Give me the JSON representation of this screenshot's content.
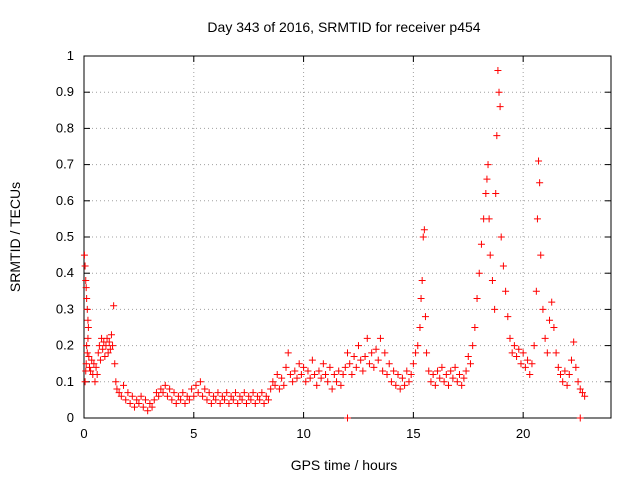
{
  "chart_data": {
    "type": "scatter",
    "title": "Day 343 of 2016, SRMTID for receiver p454",
    "xlabel": "GPS time / hours",
    "ylabel": "SRMTID / TECUs",
    "xlim": [
      0,
      24
    ],
    "ylim": [
      0,
      1
    ],
    "xticks": [
      0,
      5,
      10,
      15,
      20
    ],
    "xtick_labels": [
      "0",
      "5",
      "10",
      "15",
      "20"
    ],
    "yticks": [
      0,
      0.1,
      0.2,
      0.3,
      0.4,
      0.5,
      0.6,
      0.7,
      0.8,
      0.9,
      1
    ],
    "ytick_labels": [
      "0",
      "0.1",
      "0.2",
      "0.3",
      "0.4",
      "0.5",
      "0.6",
      "0.7",
      "0.8",
      "0.9",
      "1"
    ],
    "grid": true,
    "marker": "+",
    "color": "#ff0000",
    "series": [
      {
        "name": "SRMTID",
        "points": [
          [
            0.02,
            0.45
          ],
          [
            0.05,
            0.42
          ],
          [
            0.08,
            0.38
          ],
          [
            0.1,
            0.36
          ],
          [
            0.12,
            0.33
          ],
          [
            0.15,
            0.3
          ],
          [
            0.18,
            0.27
          ],
          [
            0.2,
            0.25
          ],
          [
            0.05,
            0.1
          ],
          [
            0.08,
            0.13
          ],
          [
            0.1,
            0.15
          ],
          [
            0.12,
            0.2
          ],
          [
            0.15,
            0.18
          ],
          [
            0.18,
            0.22
          ],
          [
            0.22,
            0.17
          ],
          [
            0.25,
            0.14
          ],
          [
            0.3,
            0.13
          ],
          [
            0.35,
            0.16
          ],
          [
            0.4,
            0.12
          ],
          [
            0.45,
            0.15
          ],
          [
            0.5,
            0.1
          ],
          [
            0.55,
            0.14
          ],
          [
            0.6,
            0.12
          ],
          [
            0.65,
            0.18
          ],
          [
            0.7,
            0.2
          ],
          [
            0.75,
            0.16
          ],
          [
            0.8,
            0.22
          ],
          [
            0.85,
            0.19
          ],
          [
            0.9,
            0.21
          ],
          [
            0.95,
            0.17
          ],
          [
            1.0,
            0.2
          ],
          [
            1.05,
            0.22
          ],
          [
            1.1,
            0.18
          ],
          [
            1.15,
            0.21
          ],
          [
            1.2,
            0.19
          ],
          [
            1.25,
            0.23
          ],
          [
            1.3,
            0.2
          ],
          [
            1.35,
            0.31
          ],
          [
            1.4,
            0.15
          ],
          [
            1.45,
            0.1
          ],
          [
            1.5,
            0.08
          ],
          [
            1.6,
            0.07
          ],
          [
            1.7,
            0.06
          ],
          [
            1.8,
            0.09
          ],
          [
            1.9,
            0.05
          ],
          [
            2.0,
            0.07
          ],
          [
            2.1,
            0.04
          ],
          [
            2.2,
            0.06
          ],
          [
            2.3,
            0.03
          ],
          [
            2.4,
            0.05
          ],
          [
            2.5,
            0.04
          ],
          [
            2.6,
            0.06
          ],
          [
            2.7,
            0.03
          ],
          [
            2.8,
            0.05
          ],
          [
            2.9,
            0.02
          ],
          [
            3.0,
            0.04
          ],
          [
            3.1,
            0.03
          ],
          [
            3.2,
            0.05
          ],
          [
            3.3,
            0.07
          ],
          [
            3.4,
            0.06
          ],
          [
            3.5,
            0.08
          ],
          [
            3.6,
            0.07
          ],
          [
            3.7,
            0.09
          ],
          [
            3.8,
            0.06
          ],
          [
            3.9,
            0.08
          ],
          [
            4.0,
            0.05
          ],
          [
            4.1,
            0.07
          ],
          [
            4.2,
            0.04
          ],
          [
            4.3,
            0.06
          ],
          [
            4.4,
            0.05
          ],
          [
            4.5,
            0.07
          ],
          [
            4.6,
            0.04
          ],
          [
            4.7,
            0.06
          ],
          [
            4.8,
            0.05
          ],
          [
            4.9,
            0.08
          ],
          [
            5.0,
            0.06
          ],
          [
            5.1,
            0.09
          ],
          [
            5.2,
            0.07
          ],
          [
            5.3,
            0.1
          ],
          [
            5.4,
            0.06
          ],
          [
            5.5,
            0.08
          ],
          [
            5.6,
            0.05
          ],
          [
            5.7,
            0.07
          ],
          [
            5.8,
            0.04
          ],
          [
            5.9,
            0.06
          ],
          [
            6.0,
            0.05
          ],
          [
            6.1,
            0.07
          ],
          [
            6.2,
            0.04
          ],
          [
            6.3,
            0.06
          ],
          [
            6.4,
            0.05
          ],
          [
            6.5,
            0.07
          ],
          [
            6.6,
            0.04
          ],
          [
            6.7,
            0.06
          ],
          [
            6.8,
            0.05
          ],
          [
            6.9,
            0.07
          ],
          [
            7.0,
            0.04
          ],
          [
            7.1,
            0.06
          ],
          [
            7.2,
            0.05
          ],
          [
            7.3,
            0.07
          ],
          [
            7.4,
            0.04
          ],
          [
            7.5,
            0.06
          ],
          [
            7.6,
            0.05
          ],
          [
            7.7,
            0.07
          ],
          [
            7.8,
            0.04
          ],
          [
            7.9,
            0.06
          ],
          [
            8.0,
            0.05
          ],
          [
            8.1,
            0.07
          ],
          [
            8.2,
            0.04
          ],
          [
            8.3,
            0.06
          ],
          [
            8.4,
            0.05
          ],
          [
            8.5,
            0.08
          ],
          [
            8.6,
            0.1
          ],
          [
            8.7,
            0.09
          ],
          [
            8.8,
            0.12
          ],
          [
            8.9,
            0.08
          ],
          [
            9.0,
            0.11
          ],
          [
            9.1,
            0.09
          ],
          [
            9.2,
            0.14
          ],
          [
            9.3,
            0.18
          ],
          [
            9.4,
            0.12
          ],
          [
            9.5,
            0.1
          ],
          [
            9.6,
            0.13
          ],
          [
            9.7,
            0.11
          ],
          [
            9.8,
            0.15
          ],
          [
            9.9,
            0.12
          ],
          [
            10.0,
            0.14
          ],
          [
            10.1,
            0.1
          ],
          [
            10.2,
            0.13
          ],
          [
            10.3,
            0.11
          ],
          [
            10.4,
            0.16
          ],
          [
            10.5,
            0.12
          ],
          [
            10.6,
            0.09
          ],
          [
            10.7,
            0.13
          ],
          [
            10.8,
            0.11
          ],
          [
            10.9,
            0.15
          ],
          [
            11.0,
            0.12
          ],
          [
            11.1,
            0.1
          ],
          [
            11.2,
            0.14
          ],
          [
            11.3,
            0.08
          ],
          [
            11.4,
            0.12
          ],
          [
            11.5,
            0.1
          ],
          [
            11.6,
            0.13
          ],
          [
            11.7,
            0.09
          ],
          [
            11.8,
            0.12
          ],
          [
            11.9,
            0.14
          ],
          [
            12.0,
            0.18
          ],
          [
            12.0,
            0.0
          ],
          [
            12.1,
            0.15
          ],
          [
            12.2,
            0.12
          ],
          [
            12.3,
            0.17
          ],
          [
            12.4,
            0.14
          ],
          [
            12.5,
            0.2
          ],
          [
            12.6,
            0.16
          ],
          [
            12.7,
            0.13
          ],
          [
            12.8,
            0.17
          ],
          [
            12.9,
            0.22
          ],
          [
            13.0,
            0.15
          ],
          [
            13.1,
            0.18
          ],
          [
            13.2,
            0.14
          ],
          [
            13.3,
            0.19
          ],
          [
            13.4,
            0.16
          ],
          [
            13.5,
            0.22
          ],
          [
            13.6,
            0.13
          ],
          [
            13.7,
            0.18
          ],
          [
            13.8,
            0.12
          ],
          [
            13.9,
            0.15
          ],
          [
            14.0,
            0.1
          ],
          [
            14.1,
            0.13
          ],
          [
            14.2,
            0.09
          ],
          [
            14.3,
            0.12
          ],
          [
            14.4,
            0.08
          ],
          [
            14.5,
            0.11
          ],
          [
            14.6,
            0.09
          ],
          [
            14.7,
            0.13
          ],
          [
            14.8,
            0.1
          ],
          [
            14.9,
            0.12
          ],
          [
            15.0,
            0.15
          ],
          [
            15.1,
            0.18
          ],
          [
            15.2,
            0.2
          ],
          [
            15.3,
            0.25
          ],
          [
            15.35,
            0.33
          ],
          [
            15.4,
            0.38
          ],
          [
            15.45,
            0.5
          ],
          [
            15.5,
            0.52
          ],
          [
            15.55,
            0.28
          ],
          [
            15.6,
            0.18
          ],
          [
            15.7,
            0.13
          ],
          [
            15.8,
            0.1
          ],
          [
            15.9,
            0.12
          ],
          [
            16.0,
            0.09
          ],
          [
            16.1,
            0.13
          ],
          [
            16.2,
            0.11
          ],
          [
            16.3,
            0.14
          ],
          [
            16.4,
            0.1
          ],
          [
            16.5,
            0.12
          ],
          [
            16.6,
            0.09
          ],
          [
            16.7,
            0.13
          ],
          [
            16.8,
            0.11
          ],
          [
            16.9,
            0.14
          ],
          [
            17.0,
            0.1
          ],
          [
            17.1,
            0.12
          ],
          [
            17.2,
            0.09
          ],
          [
            17.3,
            0.11
          ],
          [
            17.4,
            0.13
          ],
          [
            17.5,
            0.17
          ],
          [
            17.6,
            0.15
          ],
          [
            17.7,
            0.2
          ],
          [
            17.8,
            0.25
          ],
          [
            17.9,
            0.33
          ],
          [
            18.0,
            0.4
          ],
          [
            18.1,
            0.48
          ],
          [
            18.2,
            0.55
          ],
          [
            18.3,
            0.62
          ],
          [
            18.35,
            0.66
          ],
          [
            18.4,
            0.7
          ],
          [
            18.45,
            0.55
          ],
          [
            18.5,
            0.45
          ],
          [
            18.6,
            0.38
          ],
          [
            18.7,
            0.3
          ],
          [
            18.75,
            0.62
          ],
          [
            18.8,
            0.78
          ],
          [
            18.85,
            0.96
          ],
          [
            18.9,
            0.9
          ],
          [
            18.95,
            0.86
          ],
          [
            19.0,
            0.5
          ],
          [
            19.1,
            0.42
          ],
          [
            19.2,
            0.35
          ],
          [
            19.3,
            0.28
          ],
          [
            19.4,
            0.22
          ],
          [
            19.5,
            0.18
          ],
          [
            19.6,
            0.2
          ],
          [
            19.7,
            0.17
          ],
          [
            19.8,
            0.19
          ],
          [
            19.9,
            0.15
          ],
          [
            20.0,
            0.18
          ],
          [
            20.1,
            0.14
          ],
          [
            20.2,
            0.16
          ],
          [
            20.3,
            0.12
          ],
          [
            20.4,
            0.15
          ],
          [
            20.5,
            0.2
          ],
          [
            20.6,
            0.35
          ],
          [
            20.65,
            0.55
          ],
          [
            20.7,
            0.71
          ],
          [
            20.75,
            0.65
          ],
          [
            20.8,
            0.45
          ],
          [
            20.9,
            0.3
          ],
          [
            21.0,
            0.22
          ],
          [
            21.1,
            0.18
          ],
          [
            21.2,
            0.27
          ],
          [
            21.3,
            0.32
          ],
          [
            21.4,
            0.25
          ],
          [
            21.5,
            0.18
          ],
          [
            21.6,
            0.14
          ],
          [
            21.7,
            0.12
          ],
          [
            21.8,
            0.1
          ],
          [
            21.9,
            0.13
          ],
          [
            22.0,
            0.09
          ],
          [
            22.1,
            0.12
          ],
          [
            22.2,
            0.16
          ],
          [
            22.3,
            0.21
          ],
          [
            22.4,
            0.14
          ],
          [
            22.5,
            0.1
          ],
          [
            22.6,
            0.08
          ],
          [
            22.7,
            0.07
          ],
          [
            22.8,
            0.06
          ],
          [
            22.6,
            0.0
          ]
        ]
      }
    ]
  }
}
